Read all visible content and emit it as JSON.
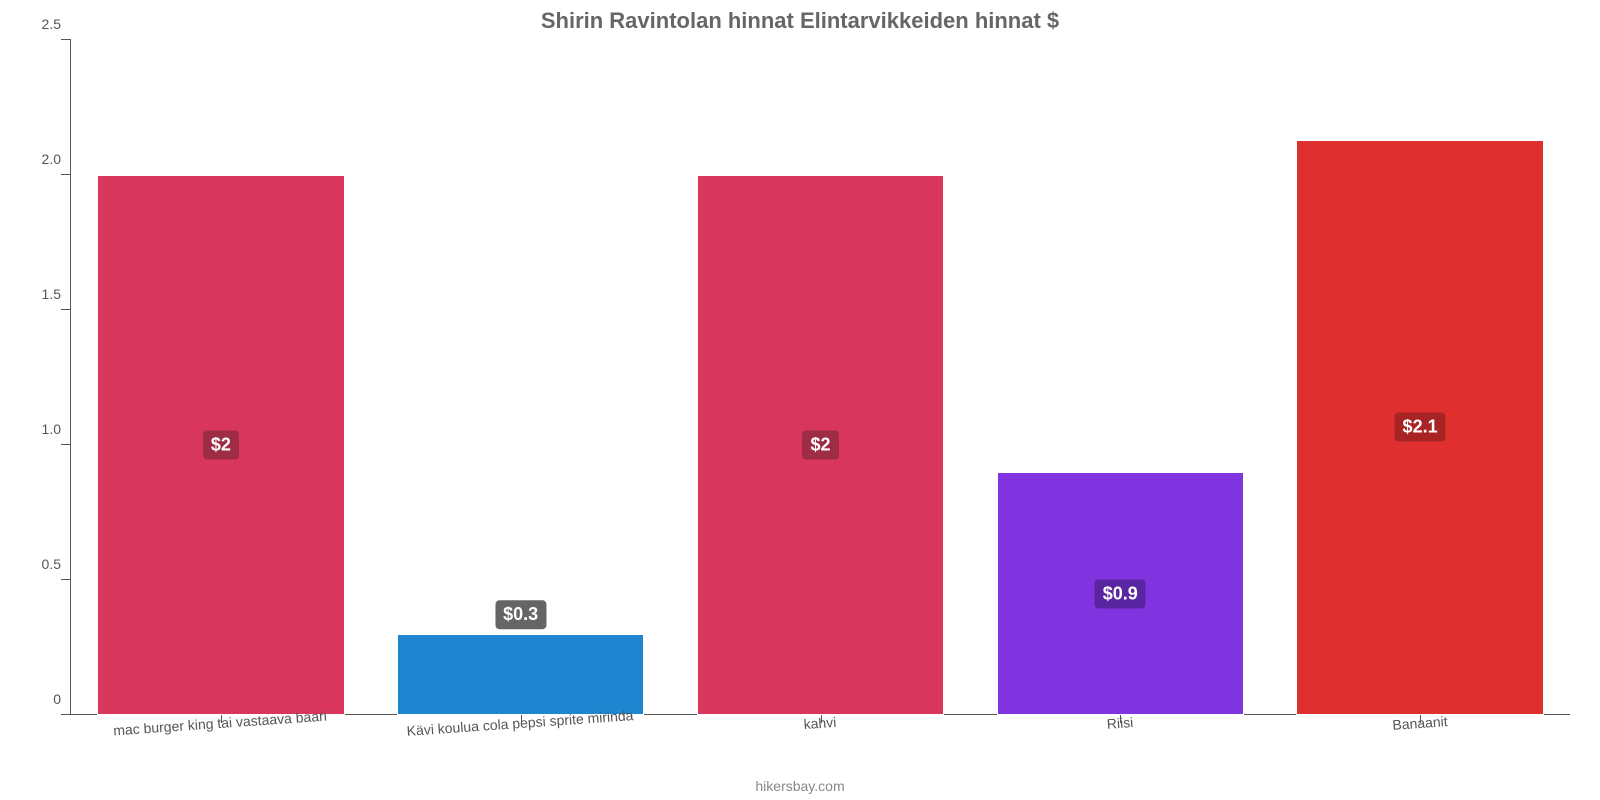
{
  "chart": {
    "type": "bar",
    "title": "Shirin Ravintolan hinnat Elintarvikkeiden hinnat $",
    "title_color": "#666666",
    "title_fontsize": 22,
    "background_color": "#ffffff",
    "axis_color": "#555555",
    "ylim": [
      0,
      2.5
    ],
    "yticks": [
      0,
      0.5,
      1.0,
      1.5,
      2.0,
      2.5
    ],
    "ytick_labels": [
      "0",
      "0.5",
      "1.0",
      "1.5",
      "2.0",
      "2.5"
    ],
    "bar_width_pct": 16.5,
    "label_fontsize": 14,
    "value_label_fontsize": 18,
    "attribution": "hikersbay.com",
    "categories": [
      "mac burger king tai vastaava baari",
      "Kävi koulua cola pepsi sprite mirinda",
      "kahvi",
      "Riisi",
      "Banaanit"
    ],
    "values": [
      2.0,
      0.3,
      2.0,
      0.9,
      2.13
    ],
    "value_labels": [
      "$2",
      "$0.3",
      "$2",
      "$0.9",
      "$2.1"
    ],
    "bar_colors": [
      "#d9365d",
      "#1e85d0",
      "#d9365d",
      "#8034e0",
      "#e02f2f"
    ],
    "badge_colors": [
      "#9e2c45",
      "#656565",
      "#9e2c45",
      "#5a25a0",
      "#a82424"
    ],
    "label_inside": [
      true,
      false,
      true,
      true,
      true
    ]
  }
}
